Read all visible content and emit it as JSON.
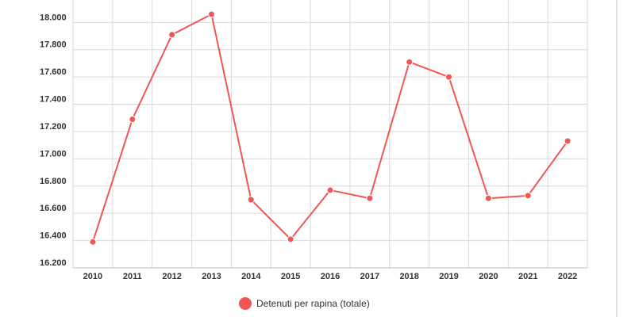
{
  "chart_data": {
    "type": "line",
    "title": "",
    "xlabel": "",
    "ylabel": "",
    "x": [
      "2010",
      "2011",
      "2012",
      "2013",
      "2014",
      "2015",
      "2016",
      "2017",
      "2018",
      "2019",
      "2020",
      "2021",
      "2022"
    ],
    "series": [
      {
        "name": "Detenuti per rapina (totale)",
        "color": "#f05656",
        "values": [
          16390,
          17290,
          17910,
          18060,
          16700,
          16410,
          16770,
          16710,
          17710,
          17600,
          16710,
          16730,
          17130
        ]
      }
    ],
    "y_ticks": [
      16200,
      16400,
      16600,
      16800,
      17000,
      17200,
      17400,
      17600,
      17800,
      18000
    ],
    "y_tick_labels": [
      "16.200",
      "16.400",
      "16.600",
      "16.800",
      "17.000",
      "17.200",
      "17.400",
      "17.600",
      "17.800",
      "18.000"
    ],
    "ylim": [
      16200,
      18060
    ],
    "grid": true,
    "legend_position": "bottom-center"
  }
}
